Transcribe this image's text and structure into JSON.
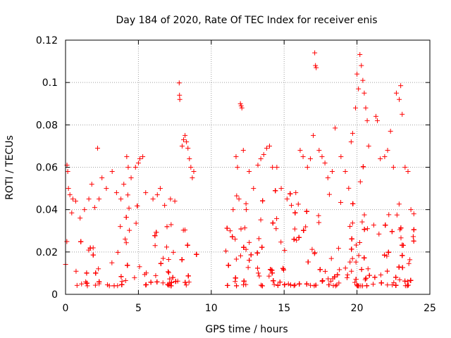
{
  "chart_data": {
    "type": "scatter",
    "title": "Day 184 of 2020, Rate Of TEC Index for receiver enis",
    "xlabel": "GPS time / hours",
    "ylabel": "ROTI / TECUs",
    "xlim": [
      0,
      25
    ],
    "ylim": [
      0,
      0.12
    ],
    "xticks": [
      "0",
      "5",
      "10",
      "15",
      "20",
      "25"
    ],
    "yticks": [
      "0",
      "0.02",
      "0.04",
      "0.06",
      "0.08",
      "0.1",
      "0.12"
    ],
    "grid": true,
    "marker": "+",
    "color": "#ff0000",
    "gap_hours": [
      9.0,
      11.0
    ],
    "series": [
      {
        "points": [
          [
            0.1,
            0.061
          ],
          [
            0.15,
            0.058
          ],
          [
            0.2,
            0.05
          ],
          [
            0.3,
            0.047
          ],
          [
            0.5,
            0.045
          ],
          [
            0.7,
            0.044
          ],
          [
            1.0,
            0.036
          ],
          [
            1.3,
            0.04
          ],
          [
            1.6,
            0.045
          ],
          [
            1.8,
            0.052
          ],
          [
            2.0,
            0.041
          ],
          [
            2.2,
            0.069
          ],
          [
            2.3,
            0.045
          ],
          [
            2.5,
            0.055
          ],
          [
            2.8,
            0.05
          ],
          [
            3.2,
            0.058
          ],
          [
            3.5,
            0.048
          ],
          [
            3.8,
            0.045
          ],
          [
            4.0,
            0.052
          ],
          [
            4.2,
            0.065
          ],
          [
            4.3,
            0.06
          ],
          [
            4.5,
            0.055
          ],
          [
            4.8,
            0.06
          ],
          [
            5.0,
            0.062
          ],
          [
            5.1,
            0.064
          ],
          [
            5.3,
            0.065
          ],
          [
            5.5,
            0.048
          ],
          [
            6.0,
            0.045
          ],
          [
            6.3,
            0.047
          ],
          [
            6.5,
            0.05
          ],
          [
            6.8,
            0.042
          ],
          [
            7.2,
            0.045
          ],
          [
            7.5,
            0.044
          ],
          [
            7.8,
            0.0998
          ],
          [
            7.82,
            0.094
          ],
          [
            7.84,
            0.092
          ],
          [
            8.0,
            0.07
          ],
          [
            8.1,
            0.073
          ],
          [
            8.2,
            0.075
          ],
          [
            8.3,
            0.072
          ],
          [
            8.4,
            0.069
          ],
          [
            8.5,
            0.064
          ],
          [
            8.6,
            0.06
          ],
          [
            8.7,
            0.055
          ],
          [
            8.8,
            0.058
          ],
          [
            11.3,
            0.03
          ],
          [
            11.5,
            0.04
          ],
          [
            11.7,
            0.065
          ],
          [
            11.8,
            0.06
          ],
          [
            11.9,
            0.045
          ],
          [
            12.0,
            0.09
          ],
          [
            12.05,
            0.089
          ],
          [
            12.1,
            0.088
          ],
          [
            12.2,
            0.068
          ],
          [
            12.4,
            0.04
          ],
          [
            12.6,
            0.058
          ],
          [
            12.9,
            0.05
          ],
          [
            13.2,
            0.061
          ],
          [
            13.4,
            0.064
          ],
          [
            13.6,
            0.066
          ],
          [
            13.8,
            0.069
          ],
          [
            14.0,
            0.07
          ],
          [
            14.2,
            0.06
          ],
          [
            14.5,
            0.06
          ],
          [
            14.8,
            0.05
          ],
          [
            15.2,
            0.045
          ],
          [
            15.5,
            0.042
          ],
          [
            15.8,
            0.048
          ],
          [
            16.1,
            0.068
          ],
          [
            16.3,
            0.065
          ],
          [
            16.6,
            0.06
          ],
          [
            16.8,
            0.064
          ],
          [
            17.0,
            0.075
          ],
          [
            17.1,
            0.114
          ],
          [
            17.15,
            0.108
          ],
          [
            17.2,
            0.107
          ],
          [
            17.4,
            0.068
          ],
          [
            17.6,
            0.065
          ],
          [
            17.8,
            0.062
          ],
          [
            18.0,
            0.055
          ],
          [
            18.3,
            0.058
          ],
          [
            18.5,
            0.0785
          ],
          [
            18.9,
            0.065
          ],
          [
            19.2,
            0.058
          ],
          [
            19.6,
            0.072
          ],
          [
            19.7,
            0.076
          ],
          [
            19.9,
            0.088
          ],
          [
            20.0,
            0.104
          ],
          [
            20.1,
            0.097
          ],
          [
            20.2,
            0.1132
          ],
          [
            20.3,
            0.108
          ],
          [
            20.4,
            0.101
          ],
          [
            20.5,
            0.095
          ],
          [
            20.6,
            0.088
          ],
          [
            20.7,
            0.082
          ],
          [
            20.8,
            0.07
          ],
          [
            21.3,
            0.084
          ],
          [
            21.4,
            0.082
          ],
          [
            21.6,
            0.064
          ],
          [
            21.9,
            0.065
          ],
          [
            22.1,
            0.068
          ],
          [
            22.3,
            0.077
          ],
          [
            22.5,
            0.06
          ],
          [
            22.7,
            0.095
          ],
          [
            22.9,
            0.092
          ],
          [
            23.0,
            0.0985
          ],
          [
            23.1,
            0.085
          ],
          [
            23.3,
            0.06
          ],
          [
            23.5,
            0.058
          ],
          [
            23.7,
            0.04
          ],
          [
            23.9,
            0.038
          ]
        ]
      }
    ]
  }
}
